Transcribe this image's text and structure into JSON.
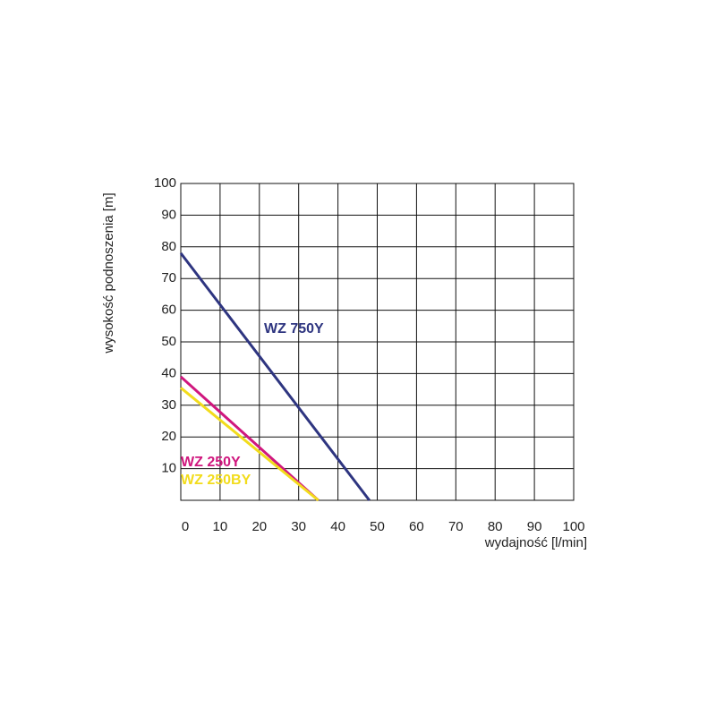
{
  "chart_data": {
    "type": "line",
    "x_label": "wydajność [l/min]",
    "y_label": "wysokość podnoszenia [m]",
    "xlim": [
      0,
      100
    ],
    "xticks": [
      0,
      10,
      20,
      30,
      40,
      50,
      60,
      70,
      80,
      90,
      100
    ],
    "ylim": [
      0,
      100
    ],
    "yticks": [
      10,
      20,
      30,
      40,
      50,
      60,
      70,
      80,
      90,
      100
    ],
    "grid": true,
    "series": [
      {
        "name": "WZ 750Y",
        "color": "#2e3580",
        "x": [
          0,
          48
        ],
        "values": [
          78,
          0
        ]
      },
      {
        "name": "WZ 250Y",
        "color": "#d0177e",
        "x": [
          0,
          35
        ],
        "values": [
          39,
          0
        ]
      },
      {
        "name": "WZ 250BY",
        "color": "#f2dc1c",
        "x": [
          0,
          35
        ],
        "values": [
          35.5,
          0
        ]
      }
    ]
  }
}
